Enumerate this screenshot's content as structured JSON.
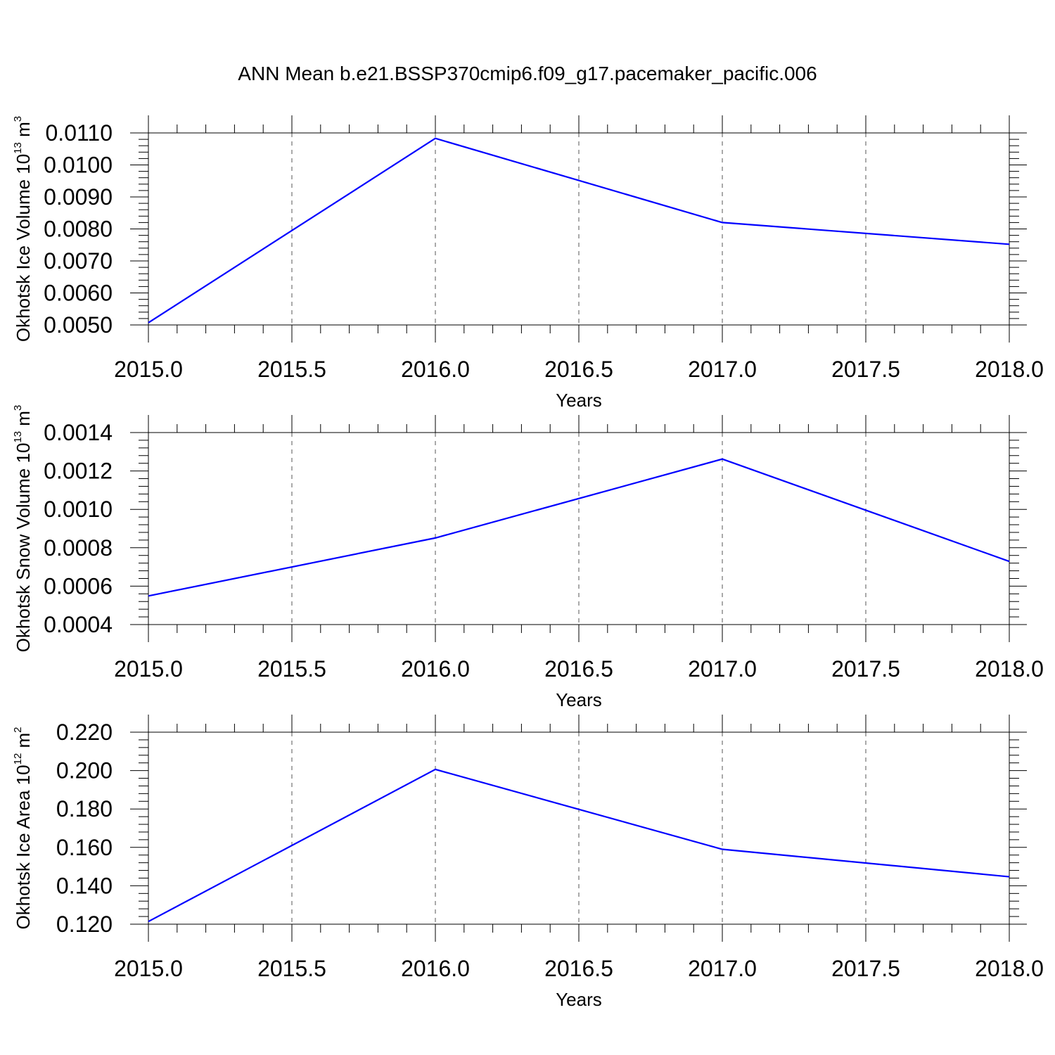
{
  "title": "ANN Mean b.e21.BSSP370cmip6.f09_g17.pacemaker_pacific.006",
  "line_color": "#0000ff",
  "chart_data": [
    {
      "type": "line",
      "xlabel": "Years",
      "ylabel": {
        "text": "Okhotsk Ice Volume 10",
        "exp": "13",
        "unit": " m",
        "unit_exp": "3"
      },
      "x": [
        2015,
        2016,
        2017,
        2018
      ],
      "series": [
        {
          "values": [
            0.00507,
            0.01083,
            0.0082,
            0.00752
          ]
        }
      ],
      "xlim": [
        2015.0,
        2018.0
      ],
      "ylim": [
        0.005,
        0.011
      ],
      "xticks": [
        "2015.0",
        "2015.5",
        "2016.0",
        "2016.5",
        "2017.0",
        "2017.5",
        "2018.0"
      ],
      "yticks": [
        "0.0050",
        "0.0060",
        "0.0070",
        "0.0080",
        "0.0090",
        "0.0100",
        "0.0110"
      ],
      "grid": "vertical-dashed"
    },
    {
      "type": "line",
      "xlabel": "Years",
      "ylabel": {
        "text": "Okhotsk Snow Volume 10",
        "exp": "13",
        "unit": " m",
        "unit_exp": "3"
      },
      "x": [
        2015,
        2016,
        2017,
        2018
      ],
      "series": [
        {
          "values": [
            0.000549,
            0.000851,
            0.001262,
            0.000729
          ]
        }
      ],
      "xlim": [
        2015.0,
        2018.0
      ],
      "ylim": [
        0.0004,
        0.0014
      ],
      "xticks": [
        "2015.0",
        "2015.5",
        "2016.0",
        "2016.5",
        "2017.0",
        "2017.5",
        "2018.0"
      ],
      "yticks": [
        "0.0004",
        "0.0006",
        "0.0008",
        "0.0010",
        "0.0012",
        "0.0014"
      ],
      "grid": "vertical-dashed"
    },
    {
      "type": "line",
      "xlabel": "Years",
      "ylabel": {
        "text": "Okhotsk Ice Area 10",
        "exp": "12",
        "unit": " m",
        "unit_exp": "2"
      },
      "x": [
        2015,
        2016,
        2017,
        2018
      ],
      "series": [
        {
          "values": [
            0.1214,
            0.2006,
            0.159,
            0.1447
          ]
        }
      ],
      "xlim": [
        2015.0,
        2018.0
      ],
      "ylim": [
        0.12,
        0.22
      ],
      "xticks": [
        "2015.0",
        "2015.5",
        "2016.0",
        "2016.5",
        "2017.0",
        "2017.5",
        "2018.0"
      ],
      "yticks": [
        "0.120",
        "0.140",
        "0.160",
        "0.180",
        "0.200",
        "0.220"
      ],
      "grid": "vertical-dashed"
    }
  ]
}
